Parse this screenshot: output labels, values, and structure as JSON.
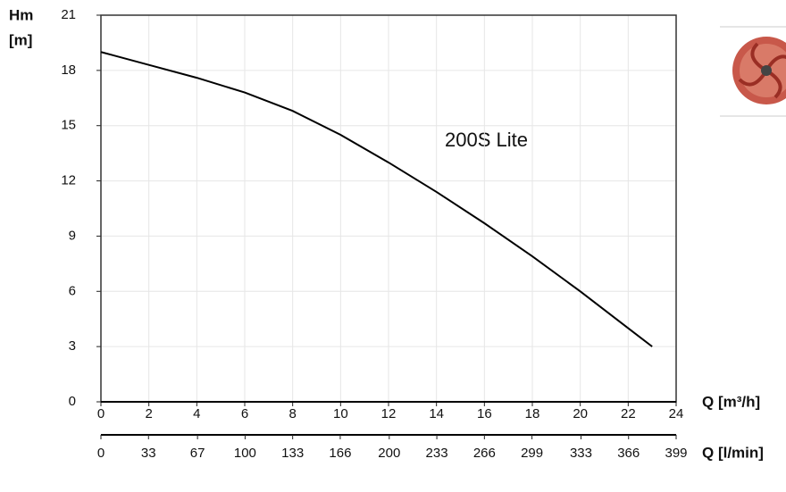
{
  "chart_data": {
    "type": "line",
    "ylabel": [
      "Hm",
      "[m]"
    ],
    "xlabel": "Q [m³/h]",
    "x2label": "Q [l/min]",
    "annotation": "200S Lite",
    "x": [
      0,
      2,
      4,
      6,
      8,
      10,
      12,
      14,
      16,
      18,
      20,
      22,
      23
    ],
    "series": [
      {
        "name": "200S Lite",
        "color": "#000000",
        "values": [
          19.0,
          18.3,
          17.6,
          16.8,
          15.8,
          14.5,
          13.0,
          11.4,
          9.7,
          7.9,
          6.0,
          4.0,
          3.0
        ]
      }
    ],
    "xlim": [
      0,
      24
    ],
    "xticks": [
      0,
      2,
      4,
      6,
      8,
      10,
      12,
      14,
      16,
      18,
      20,
      22,
      24
    ],
    "x2lim": [
      0,
      399
    ],
    "x2ticks": [
      0,
      33,
      67,
      100,
      133,
      166,
      200,
      233,
      266,
      299,
      333,
      366,
      399
    ],
    "ylim": [
      0,
      21
    ],
    "yticks": [
      0,
      3,
      6,
      9,
      12,
      15,
      18,
      21
    ],
    "grid": true
  }
}
